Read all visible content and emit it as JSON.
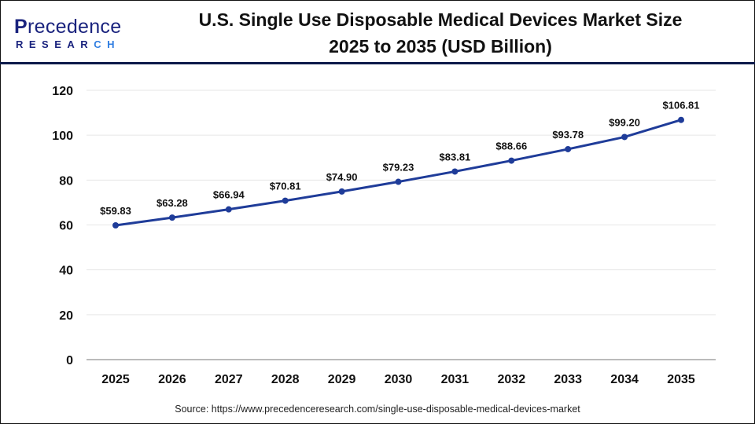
{
  "logo": {
    "text_main": "recedence",
    "text_initial": "P",
    "text_sub_a": "RESEAR",
    "text_sub_b": "CH"
  },
  "chart_data": {
    "type": "line",
    "title": "U.S. Single Use Disposable Medical Devices Market Size 2025 to 2035 (USD Billion)",
    "categories": [
      "2025",
      "2026",
      "2027",
      "2028",
      "2029",
      "2030",
      "2031",
      "2032",
      "2033",
      "2034",
      "2035"
    ],
    "series": [
      {
        "values": [
          59.83,
          63.28,
          66.94,
          70.81,
          74.9,
          79.23,
          83.81,
          88.66,
          93.78,
          99.2,
          106.81
        ]
      }
    ],
    "data_labels": [
      "$59.83",
      "$63.28",
      "$66.94",
      "$70.81",
      "$74.90",
      "$79.23",
      "$83.81",
      "$88.66",
      "$93.78",
      "$99.20",
      "$106.81"
    ],
    "yticks": [
      0,
      20,
      40,
      60,
      80,
      100,
      120
    ],
    "ylim": [
      0,
      120
    ],
    "grid": "horizontal",
    "line_color": "#1f3c99",
    "xlabel": "",
    "ylabel": ""
  },
  "source": "Source: https://www.precedenceresearch.com/single-use-disposable-medical-devices-market"
}
